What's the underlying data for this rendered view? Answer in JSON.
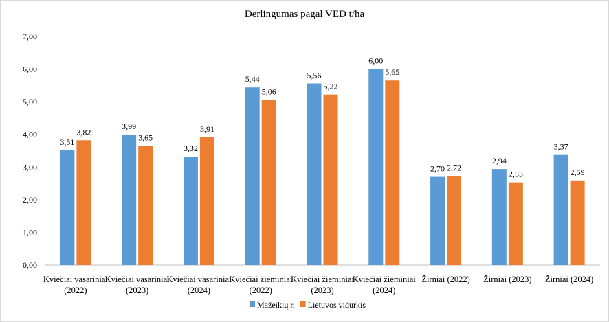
{
  "chart_data": {
    "type": "bar",
    "title": "Derlingumas pagal VED t/ha",
    "xlabel": "",
    "ylabel": "",
    "ylim": [
      0,
      7
    ],
    "yticks": [
      0,
      1,
      2,
      3,
      4,
      5,
      6,
      7
    ],
    "ytick_labels": [
      "0,00",
      "1,00",
      "2,00",
      "3,00",
      "4,00",
      "5,00",
      "6,00",
      "7,00"
    ],
    "grid": false,
    "legend_position": "bottom",
    "categories": [
      [
        "Kviečiai vasariniai",
        "(2022)"
      ],
      [
        "Kviečiai vasariniai",
        "(2023)"
      ],
      [
        "Kviečiai vasariniai",
        "(2024)"
      ],
      [
        "Kviečiai žieminiai",
        "(2022)"
      ],
      [
        "Kviečiai žieminiai",
        "(2023)"
      ],
      [
        "Kviečiai žieminiai",
        "(2024)"
      ],
      [
        "Žirniai (2022)"
      ],
      [
        "Žirniai (2023)"
      ],
      [
        "Žirniai (2024)"
      ]
    ],
    "series": [
      {
        "name": "Mažeikių r.",
        "color": "#5b9bd5",
        "values": [
          3.51,
          3.99,
          3.32,
          5.44,
          5.56,
          6.0,
          2.7,
          2.94,
          3.37
        ],
        "labels": [
          "3,51",
          "3,99",
          "3,32",
          "5,44",
          "5,56",
          "6,00",
          "2,70",
          "2,94",
          "3,37"
        ]
      },
      {
        "name": "Lietuvos vidurkis",
        "color": "#ed7d31",
        "values": [
          3.82,
          3.65,
          3.91,
          5.06,
          5.22,
          5.65,
          2.72,
          2.53,
          2.59
        ],
        "labels": [
          "3,82",
          "3,65",
          "3,91",
          "5,06",
          "5,22",
          "5,65",
          "2,72",
          "2,53",
          "2,59"
        ]
      }
    ]
  }
}
